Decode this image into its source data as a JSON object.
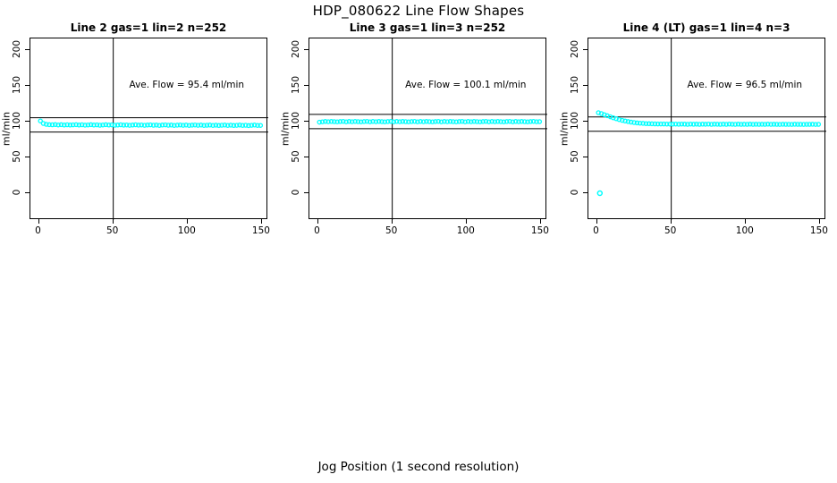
{
  "page_title": "HDP_080622  Line Flow Shapes",
  "xlabel": "Jog Position (1 second resolution)",
  "colors": {
    "points": "#00FFFF",
    "axis": "#000000",
    "background": "#FFFFFF"
  },
  "chart_data": [
    {
      "type": "scatter",
      "title": "Line 2 gas=1 lin=2 n=252",
      "annotation": "Ave. Flow =  95.4  ml/min",
      "ave_flow": 95.4,
      "ylabel": "ml/min",
      "xlim": [
        0,
        150
      ],
      "ylim": [
        0,
        200
      ],
      "x_ticks": [
        0,
        50,
        100,
        150
      ],
      "y_ticks": [
        0,
        50,
        100,
        150,
        200
      ],
      "ref_vline_x": 50,
      "ref_hlines_y": [
        105.4,
        85.4
      ],
      "annotation_pos": [
        100,
        150
      ],
      "x_start": 1,
      "x_step": 2,
      "y_values": [
        101,
        97.5,
        96.2,
        95.8,
        95.6,
        95.9,
        95.4,
        95.7,
        95.3,
        95.6,
        95.2,
        95.5,
        95.8,
        95.3,
        95.6,
        95.1,
        95.4,
        95.7,
        95.2,
        95.5,
        95.0,
        95.4,
        95.7,
        95.2,
        95.5,
        95.0,
        95.3,
        95.6,
        95.1,
        95.4,
        94.9,
        95.3,
        95.6,
        95.1,
        95.4,
        94.9,
        95.2,
        95.5,
        95.0,
        95.3,
        94.8,
        95.2,
        95.5,
        95.0,
        95.3,
        94.8,
        95.1,
        95.4,
        94.9,
        95.2,
        94.7,
        95.1,
        95.4,
        94.9,
        95.2,
        94.7,
        95.0,
        95.3,
        94.8,
        95.1,
        94.6,
        95.0,
        95.3,
        94.8,
        95.1,
        94.6,
        94.9,
        95.2,
        94.7,
        95.0,
        94.5,
        94.9,
        95.2,
        94.7,
        94.8
      ],
      "outlier_points": []
    },
    {
      "type": "scatter",
      "title": "Line 3 gas=1 lin=3 n=252",
      "annotation": "Ave. Flow =  100.1  ml/min",
      "ave_flow": 100.1,
      "ylabel": "ml/min",
      "xlim": [
        0,
        150
      ],
      "ylim": [
        0,
        200
      ],
      "x_ticks": [
        0,
        50,
        100,
        150
      ],
      "y_ticks": [
        0,
        50,
        100,
        150,
        200
      ],
      "ref_vline_x": 50,
      "ref_hlines_y": [
        110.1,
        90.1
      ],
      "annotation_pos": [
        100,
        150
      ],
      "x_start": 1,
      "x_step": 2,
      "y_values": [
        99.2,
        99.8,
        100.2,
        99.9,
        100.3,
        100.0,
        99.7,
        100.1,
        100.4,
        99.8,
        100.2,
        99.9,
        100.3,
        100.0,
        99.7,
        100.1,
        100.4,
        99.8,
        100.2,
        99.9,
        100.3,
        100.0,
        99.7,
        100.1,
        100.4,
        99.8,
        100.2,
        99.9,
        100.3,
        100.0,
        99.7,
        100.1,
        100.4,
        99.8,
        100.2,
        99.9,
        100.3,
        100.0,
        99.7,
        100.1,
        100.4,
        99.8,
        100.2,
        99.9,
        100.3,
        100.0,
        99.7,
        100.1,
        100.4,
        99.8,
        100.2,
        99.9,
        100.3,
        100.0,
        99.7,
        100.1,
        100.4,
        99.8,
        100.2,
        99.9,
        100.3,
        100.0,
        99.7,
        100.1,
        100.4,
        99.8,
        100.2,
        99.9,
        100.3,
        100.0,
        99.7,
        100.1,
        100.4,
        99.9,
        100.0
      ],
      "outlier_points": []
    },
    {
      "type": "scatter",
      "title": "Line 4 (LT) gas=1 lin=4 n=3",
      "annotation": "Ave. Flow =  96.5  ml/min",
      "ave_flow": 96.5,
      "ylabel": "ml/min",
      "xlim": [
        0,
        150
      ],
      "ylim": [
        0,
        200
      ],
      "x_ticks": [
        0,
        50,
        100,
        150
      ],
      "y_ticks": [
        0,
        50,
        100,
        150,
        200
      ],
      "ref_vline_x": 50,
      "ref_hlines_y": [
        106.5,
        86.5
      ],
      "annotation_pos": [
        100,
        150
      ],
      "x_start": 1,
      "x_step": 2,
      "y_values": [
        112.5,
        111.2,
        109.8,
        108.3,
        106.8,
        105.4,
        104.1,
        102.9,
        101.8,
        100.9,
        100.1,
        99.4,
        98.8,
        98.3,
        97.9,
        97.6,
        97.3,
        97.1,
        97.0,
        96.9,
        96.8,
        96.7,
        96.7,
        96.6,
        96.6,
        96.5,
        96.6,
        96.4,
        96.6,
        96.5,
        96.3,
        96.6,
        96.4,
        96.5,
        96.3,
        96.5,
        96.4,
        96.6,
        96.3,
        96.5,
        96.4,
        96.2,
        96.5,
        96.3,
        96.6,
        96.4,
        96.2,
        96.5,
        96.3,
        96.4,
        96.2,
        96.5,
        96.3,
        96.4,
        96.2,
        96.4,
        96.3,
        96.5,
        96.2,
        96.4,
        96.3,
        96.1,
        96.4,
        96.2,
        96.3,
        96.1,
        96.4,
        96.2,
        96.3,
        96.1,
        96.3,
        96.2,
        96.4,
        96.1,
        96.2
      ],
      "outlier_points": [
        [
          2,
          0
        ]
      ]
    }
  ]
}
